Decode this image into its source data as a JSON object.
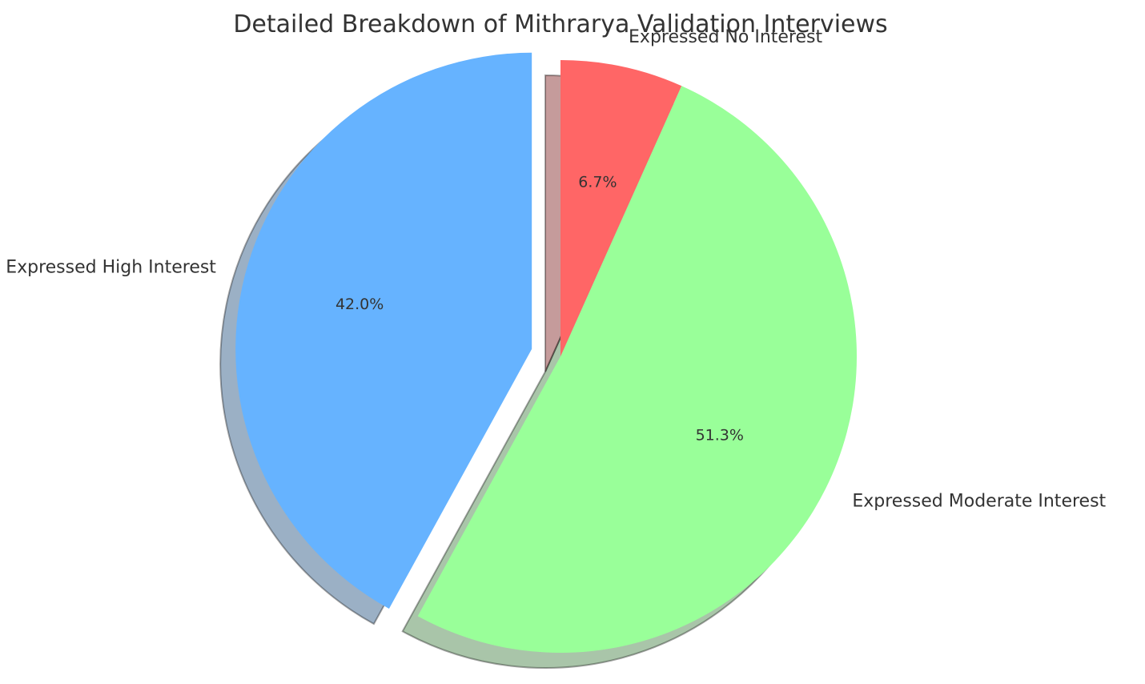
{
  "chart_data": {
    "type": "pie",
    "title": "Detailed Breakdown of Mithrarya Validation Interviews",
    "labels": [
      "Expressed High Interest",
      "Expressed Moderate Interest",
      "Expressed No Interest"
    ],
    "values": [
      42.0,
      51.3,
      6.7
    ],
    "percent_labels": [
      "42.0%",
      "51.3%",
      "6.7%"
    ],
    "colors": [
      "#66b3ff",
      "#99ff99",
      "#ff6666"
    ],
    "explode": [
      0.1,
      0,
      0
    ],
    "shadow": true,
    "start_angle_deg": 90,
    "direction": "counterclockwise",
    "legend": false
  }
}
